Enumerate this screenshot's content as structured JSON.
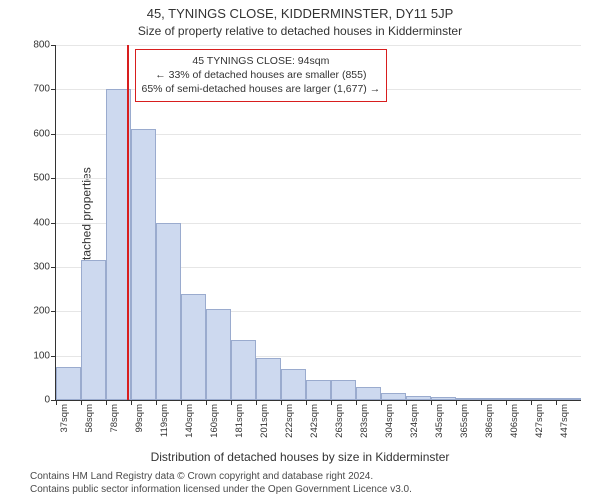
{
  "title": "45, TYNINGS CLOSE, KIDDERMINSTER, DY11 5JP",
  "subtitle": "Size of property relative to detached houses in Kidderminster",
  "y_axis_label": "Number of detached properties",
  "x_axis_label": "Distribution of detached houses by size in Kidderminster",
  "footer_line1": "Contains HM Land Registry data © Crown copyright and database right 2024.",
  "footer_line2": "Contains public sector information licensed under the Open Government Licence v3.0.",
  "chart": {
    "type": "histogram",
    "background_color": "#ffffff",
    "grid_color": "#e6e6e6",
    "axis_color": "#333333",
    "bar_fill": "#cdd9ef",
    "bar_border": "#9aabce",
    "reference_line_color": "#d81e1e",
    "callout_border": "#d81e1e",
    "y": {
      "min": 0,
      "max": 800,
      "tick_step": 100,
      "ticks": [
        0,
        100,
        200,
        300,
        400,
        500,
        600,
        700,
        800
      ]
    },
    "x": {
      "unit": "sqm",
      "bin_width_sqm": 20,
      "tick_labels": [
        "37sqm",
        "58sqm",
        "78sqm",
        "99sqm",
        "119sqm",
        "140sqm",
        "160sqm",
        "181sqm",
        "201sqm",
        "222sqm",
        "242sqm",
        "263sqm",
        "283sqm",
        "304sqm",
        "324sqm",
        "345sqm",
        "365sqm",
        "386sqm",
        "406sqm",
        "427sqm",
        "447sqm"
      ]
    },
    "values": [
      75,
      315,
      700,
      610,
      400,
      240,
      205,
      135,
      95,
      70,
      45,
      45,
      30,
      15,
      8,
      7,
      5,
      3,
      2,
      2,
      2
    ],
    "reference": {
      "position_bin_index": 2,
      "position_fraction_in_bin": 0.82,
      "callout": {
        "line1": "45 TYNINGS CLOSE: 94sqm",
        "line2": "← 33% of detached houses are smaller (855)",
        "line3": "65% of semi-detached houses are larger (1,677) →"
      }
    }
  },
  "fonts": {
    "title_size_pt": 13,
    "subtitle_size_pt": 12,
    "axis_label_size_pt": 12,
    "tick_size_pt": 10,
    "callout_size_pt": 10.5,
    "footer_size_pt": 10
  }
}
